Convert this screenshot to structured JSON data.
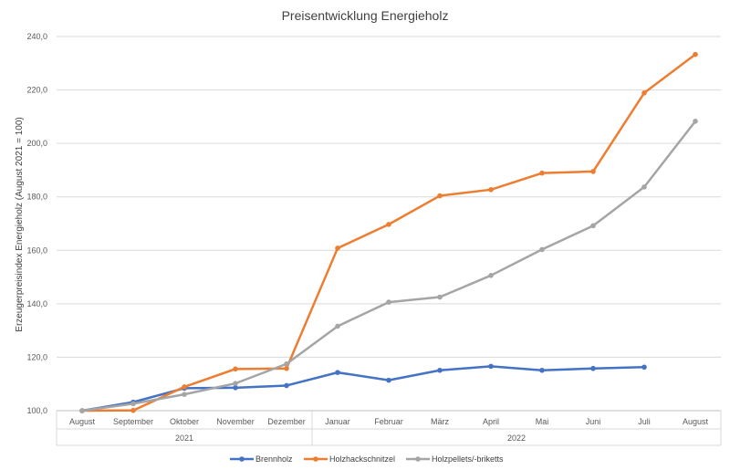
{
  "chart_data": {
    "type": "line",
    "title": "Preisentwicklung Energieholz",
    "ylabel": "Erzeugerpreisindex Energieholz (August 2021 = 100)",
    "xlabel": "",
    "ylim": [
      100,
      240
    ],
    "yticks": [
      "100,0",
      "120,0",
      "140,0",
      "160,0",
      "180,0",
      "200,0",
      "220,0",
      "240,0"
    ],
    "grid": true,
    "legend_position": "bottom",
    "categories": [
      "August",
      "September",
      "Oktober",
      "November",
      "Dezember",
      "Januar",
      "Februar",
      "März",
      "April",
      "Mai",
      "Juni",
      "Juli",
      "August"
    ],
    "year_groups": [
      {
        "label": "2021",
        "start": 0,
        "end": 4
      },
      {
        "label": "2022",
        "start": 5,
        "end": 12
      }
    ],
    "series": [
      {
        "name": "Brennholz",
        "color": "#4472C4",
        "values": [
          100.0,
          103.2,
          108.4,
          108.6,
          109.4,
          114.3,
          111.4,
          115.1,
          116.6,
          115.1,
          115.8,
          116.3,
          null
        ]
      },
      {
        "name": "Holzhackschnitzel",
        "color": "#ED7D31",
        "values": [
          100.0,
          100.1,
          108.9,
          115.6,
          115.8,
          160.8,
          169.7,
          180.4,
          182.7,
          188.9,
          189.5,
          218.9,
          233.3
        ]
      },
      {
        "name": "Holzpellets/-briketts",
        "color": "#A5A5A5",
        "values": [
          100.0,
          102.6,
          106.1,
          110.2,
          117.5,
          131.6,
          140.6,
          142.5,
          150.6,
          160.3,
          169.2,
          183.7,
          208.3
        ]
      }
    ]
  }
}
